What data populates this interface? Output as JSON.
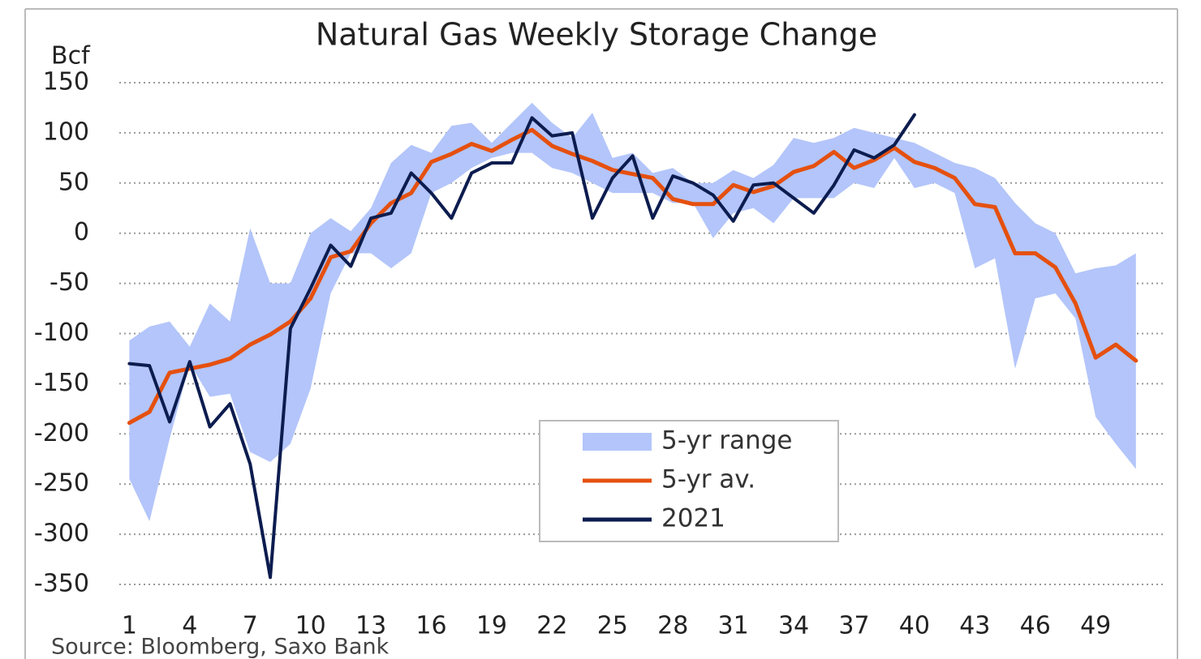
{
  "chart_data": {
    "type": "line",
    "title": "Natural Gas Weekly Storage Change",
    "ylabel": "Bcf",
    "source": "Source: Bloomberg, Saxo Bank",
    "x": [
      1,
      2,
      3,
      4,
      5,
      6,
      7,
      8,
      9,
      10,
      11,
      12,
      13,
      14,
      15,
      16,
      17,
      18,
      19,
      20,
      21,
      22,
      23,
      24,
      25,
      26,
      27,
      28,
      29,
      30,
      31,
      32,
      33,
      34,
      35,
      36,
      37,
      38,
      39,
      40,
      41,
      42,
      43,
      44,
      45,
      46,
      47,
      48,
      49,
      50,
      51
    ],
    "xlim": [
      0.5,
      52.5
    ],
    "xticks": [
      1,
      4,
      7,
      10,
      13,
      16,
      19,
      22,
      25,
      28,
      31,
      34,
      37,
      40,
      43,
      46,
      49
    ],
    "ylim": [
      -350,
      150
    ],
    "yticks": [
      150,
      100,
      50,
      0,
      -50,
      -100,
      -150,
      -200,
      -250,
      -300,
      -350
    ],
    "grid": true,
    "legend": "bottom-center",
    "series": [
      {
        "name": "5-yr range",
        "color": "#b3c5fa",
        "high": [
          -107,
          -93,
          -88,
          -113,
          -70,
          -88,
          5,
          -50,
          -50,
          0,
          15,
          2,
          25,
          70,
          88,
          80,
          107,
          110,
          90,
          110,
          130,
          110,
          95,
          120,
          75,
          80,
          60,
          65,
          50,
          50,
          63,
          55,
          68,
          95,
          90,
          95,
          105,
          100,
          95,
          90,
          80,
          70,
          65,
          55,
          30,
          10,
          0,
          -40,
          -35,
          -32,
          -20
        ],
        "low": [
          -245,
          -287,
          -205,
          -130,
          -163,
          -160,
          -218,
          -228,
          -210,
          -155,
          -60,
          -20,
          -20,
          -35,
          -20,
          40,
          50,
          65,
          75,
          80,
          80,
          65,
          60,
          50,
          40,
          40,
          40,
          30,
          30,
          -5,
          20,
          25,
          10,
          35,
          35,
          35,
          50,
          45,
          75,
          45,
          50,
          40,
          -35,
          -25,
          -135,
          -65,
          -60,
          -85,
          -183,
          -210,
          -235
        ]
      },
      {
        "name": "5-yr av.",
        "color": "#e5500f",
        "values": [
          -189,
          -178,
          -139,
          -135,
          -131,
          -125,
          -111,
          -101,
          -88,
          -65,
          -24,
          -18,
          10,
          30,
          40,
          71,
          79,
          89,
          82,
          93,
          103,
          87,
          79,
          72,
          63,
          59,
          55,
          34,
          29,
          29,
          48,
          41,
          47,
          61,
          67,
          81,
          65,
          73,
          85,
          71,
          65,
          55,
          29,
          26,
          -20,
          -20,
          -34,
          -70,
          -124,
          -111,
          -127
        ]
      },
      {
        "name": "2021",
        "color": "#0c1c4f",
        "values": [
          -130,
          -132,
          -188,
          -128,
          -193,
          -170,
          -230,
          -343,
          -95,
          -55,
          -12,
          -33,
          15,
          20,
          60,
          40,
          15,
          60,
          70,
          70,
          115,
          97,
          100,
          15,
          55,
          77,
          15,
          57,
          50,
          38,
          12,
          48,
          50,
          35,
          20,
          48,
          83,
          75,
          88,
          118,
          null,
          null,
          null,
          null,
          null,
          null,
          null,
          null,
          null,
          null,
          null
        ]
      }
    ]
  }
}
